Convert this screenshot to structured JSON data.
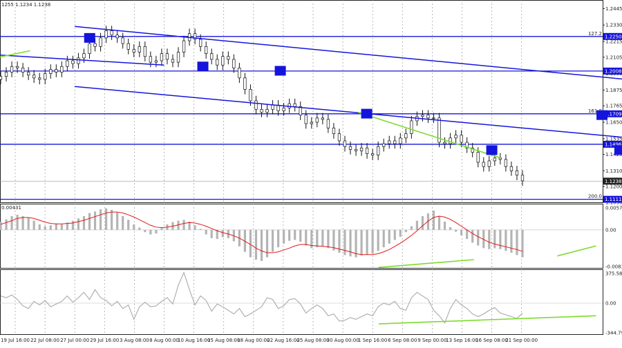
{
  "header_text": "1255 1.1234 1.1238",
  "chart_data": {
    "type": "candlestick",
    "price_pane": {
      "y_axis": {
        "min": 1.109,
        "max": 1.2505,
        "ticks": [
          "1.2445",
          "1.2330",
          "1.2215",
          "1.2105",
          "1.1990",
          "1.1875",
          "1.1765",
          "1.1650",
          "1.1535",
          "1.1425",
          "1.1310",
          "1.1200",
          "1.1090"
        ]
      },
      "closes": [
        1.197,
        1.2,
        1.204,
        1.203,
        1.2,
        1.198,
        1.196,
        1.195,
        1.199,
        1.202,
        1.2,
        1.204,
        1.208,
        1.206,
        1.21,
        1.213,
        1.22,
        1.218,
        1.224,
        1.229,
        1.226,
        1.224,
        1.22,
        1.216,
        1.214,
        1.218,
        1.211,
        1.207,
        1.208,
        1.213,
        1.209,
        1.207,
        1.214,
        1.222,
        1.227,
        1.223,
        1.218,
        1.213,
        1.209,
        1.205,
        1.211,
        1.209,
        1.203,
        1.196,
        1.188,
        1.18,
        1.174,
        1.172,
        1.174,
        1.177,
        1.173,
        1.175,
        1.178,
        1.176,
        1.17,
        1.164,
        1.165,
        1.168,
        1.167,
        1.161,
        1.157,
        1.152,
        1.148,
        1.146,
        1.145,
        1.147,
        1.143,
        1.142,
        1.148,
        1.15,
        1.152,
        1.15,
        1.154,
        1.157,
        1.166,
        1.169,
        1.17,
        1.168,
        1.168,
        1.151,
        1.15,
        1.154,
        1.156,
        1.151,
        1.147,
        1.144,
        1.137,
        1.134,
        1.138,
        1.14,
        1.139,
        1.134,
        1.131,
        1.128,
        1.124
      ],
      "horizontal_levels": [
        {
          "label": "1.2250",
          "value": 1.225,
          "fib": "127.2"
        },
        {
          "label": "1.2008",
          "value": 1.2008,
          "fib": ""
        },
        {
          "label": "1.1709",
          "value": 1.1709,
          "fib": "161.8"
        },
        {
          "label": "1.1496",
          "value": 1.1496,
          "fib": ""
        },
        {
          "label": "1.1111",
          "value": 1.1111,
          "fib": "200.0"
        }
      ],
      "current_price": {
        "label": "1.1238",
        "value": 1.1238
      },
      "channel_upper": [
        [
          2.0,
          1.232
        ],
        [
          45.0,
          1.146
        ]
      ],
      "channel_lower": [
        [
          2.0,
          1.19
        ],
        [
          45.0,
          1.107
        ]
      ],
      "left_trendline": [
        [
          -10.0,
          1.224
        ],
        [
          5.0,
          1.205
        ]
      ],
      "divergence_lines": [
        [
          [
            -9.7,
            1.2008
          ],
          [
            -4.2,
            1.206
          ]
        ],
        [
          [
            -3.0,
            1.214
          ],
          [
            -0.8,
            1.225
          ]
        ],
        [
          [
            -1.8,
            1.205
          ],
          [
            0.5,
            1.215
          ]
        ],
        [
          [
            11.5,
            1.172
          ],
          [
            16.3,
            1.14
          ]
        ]
      ],
      "marker_boxes": [
        [
          -4.0,
          1.196
        ],
        [
          2.5,
          1.224
        ],
        [
          6.3,
          1.204
        ],
        [
          8.9,
          1.201
        ],
        [
          11.8,
          1.171
        ],
        [
          16.0,
          1.1455
        ],
        [
          19.7,
          1.17
        ],
        [
          20.3,
          1.1455
        ]
      ]
    },
    "macd_pane": {
      "label_top": "0.00431",
      "y_labels": [
        "0.00572",
        "0.00",
        "-0.00831"
      ],
      "y_range": [
        -0.00831,
        0.00572
      ],
      "histogram": [
        0.0018,
        0.0023,
        0.003,
        0.0033,
        0.003,
        0.0026,
        0.002,
        0.0012,
        0.0008,
        0.001,
        0.0014,
        0.0012,
        0.0016,
        0.002,
        0.0025,
        0.003,
        0.0037,
        0.004,
        0.0045,
        0.0047,
        0.0044,
        0.0038,
        0.003,
        0.0022,
        0.0012,
        0.0005,
        -0.0005,
        -0.001,
        -0.0008,
        0.0004,
        0.0012,
        0.0017,
        0.002,
        0.0022,
        0.0018,
        0.001,
        0.0002,
        -0.001,
        -0.0018,
        -0.002,
        -0.0016,
        -0.0018,
        -0.0025,
        -0.0036,
        -0.0048,
        -0.006,
        -0.0065,
        -0.0068,
        -0.006,
        -0.0048,
        -0.0038,
        -0.003,
        -0.0024,
        -0.0022,
        -0.0026,
        -0.0034,
        -0.004,
        -0.0038,
        -0.0036,
        -0.004,
        -0.0045,
        -0.005,
        -0.0055,
        -0.0058,
        -0.006,
        -0.0056,
        -0.0054,
        -0.0052,
        -0.0046,
        -0.0038,
        -0.003,
        -0.0022,
        -0.0015,
        -0.0005,
        0.0008,
        0.002,
        0.003,
        0.0036,
        0.0042,
        0.003,
        0.0018,
        0.0006,
        -0.0004,
        -0.0012,
        -0.002,
        -0.0028,
        -0.0034,
        -0.004,
        -0.0042,
        -0.004,
        -0.0042,
        -0.0046,
        -0.005,
        -0.0055,
        -0.006
      ],
      "signal": [
        0.0012,
        0.0016,
        0.002,
        0.0025,
        0.0027,
        0.0027,
        0.0025,
        0.0021,
        0.0017,
        0.0014,
        0.0013,
        0.0013,
        0.0014,
        0.0015,
        0.0018,
        0.0021,
        0.0025,
        0.0029,
        0.0033,
        0.0037,
        0.0039,
        0.0039,
        0.0037,
        0.0033,
        0.0028,
        0.0022,
        0.0016,
        0.001,
        0.0006,
        0.0005,
        0.0006,
        0.0008,
        0.0011,
        0.0014,
        0.0016,
        0.0015,
        0.0012,
        0.0008,
        0.0003,
        -0.0002,
        -0.0006,
        -0.0009,
        -0.0013,
        -0.0018,
        -0.0025,
        -0.0032,
        -0.004,
        -0.0046,
        -0.005,
        -0.005,
        -0.0048,
        -0.0044,
        -0.004,
        -0.0035,
        -0.0032,
        -0.0032,
        -0.0034,
        -0.0035,
        -0.0036,
        -0.0037,
        -0.0039,
        -0.0042,
        -0.0045,
        -0.0048,
        -0.0052,
        -0.0054,
        -0.0054,
        -0.0054,
        -0.0052,
        -0.0048,
        -0.0043,
        -0.0036,
        -0.0029,
        -0.0021,
        -0.0012,
        -0.0002,
        0.0009,
        0.0019,
        0.0027,
        0.003,
        0.0028,
        0.0023,
        0.0016,
        0.0008,
        0.0,
        -0.0008,
        -0.0015,
        -0.0021,
        -0.0027,
        -0.0031,
        -0.0034,
        -0.0037,
        -0.004,
        -0.0043,
        -0.0047
      ],
      "divergence_lines": [
        [
          [
            -9.7,
            0.0025
          ],
          [
            -4.3,
            0.0018
          ]
        ],
        [
          [
            12.2,
            -0.0082
          ],
          [
            15.4,
            -0.0065
          ]
        ],
        [
          [
            18.2,
            -0.0057
          ],
          [
            19.5,
            -0.0035
          ]
        ]
      ]
    },
    "cci_pane": {
      "y_labels": [
        "375.5808",
        "0.00",
        "-344.79"
      ],
      "y_range": [
        -344.79,
        375.5808
      ],
      "values": [
        80,
        60,
        90,
        40,
        -30,
        -60,
        20,
        -20,
        30,
        -40,
        -10,
        20,
        80,
        10,
        60,
        120,
        40,
        150,
        60,
        30,
        -30,
        20,
        -60,
        -20,
        -180,
        -40,
        10,
        -40,
        -30,
        20,
        60,
        -10,
        200,
        340,
        150,
        -20,
        80,
        30,
        -90,
        -10,
        -40,
        -80,
        -120,
        -60,
        -150,
        -120,
        -80,
        -40,
        60,
        40,
        -60,
        -30,
        40,
        50,
        -10,
        -110,
        -60,
        -20,
        -60,
        -140,
        -120,
        -200,
        -190,
        -160,
        -180,
        -150,
        -120,
        -140,
        -40,
        0,
        -20,
        20,
        -60,
        -80,
        60,
        120,
        80,
        40,
        -80,
        -140,
        -220,
        -60,
        40,
        -20,
        -60,
        -120,
        -150,
        -120,
        -80,
        -50,
        -110,
        -130,
        -150,
        -170,
        -110
      ],
      "divergence_lines": [
        [
          [
            -4.0,
            250
          ],
          [
            -1.6,
            200
          ]
        ],
        [
          [
            -3.8,
            40
          ],
          [
            -1.3,
            -140
          ]
        ],
        [
          [
            12.2,
            -230
          ],
          [
            19.5,
            -140
          ]
        ]
      ]
    },
    "x_axis_labels": [
      "19 Jul 16:00",
      "22 Jul 08:00",
      "27 Jul 00:00",
      "29 Jul 16:00",
      "3 Aug 08:00",
      "8 Aug 00:00",
      "10 Aug 16:00",
      "15 Aug 08:00",
      "18 Aug 00:00",
      "22 Aug 16:00",
      "25 Aug 08:00",
      "30 Aug 00:00",
      "1 Sep 16:00",
      "6 Sep 08:00",
      "9 Sep 00:00",
      "13 Sep 16:00",
      "16 Sep 08:00",
      "21 Sep 00:00"
    ]
  }
}
